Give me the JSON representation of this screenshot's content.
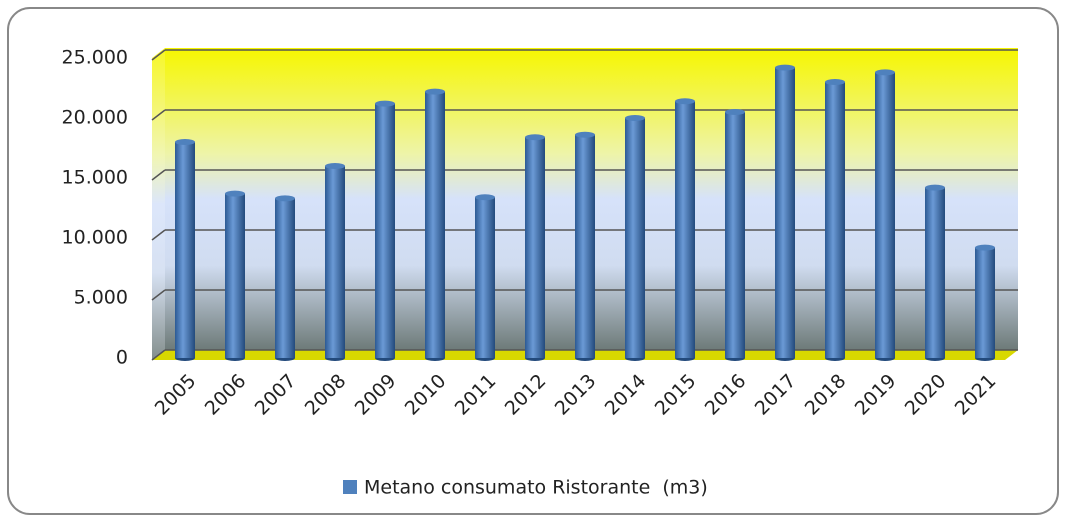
{
  "chart_data": {
    "type": "bar",
    "categories": [
      "2005",
      "2006",
      "2007",
      "2008",
      "2009",
      "2010",
      "2011",
      "2012",
      "2013",
      "2014",
      "2015",
      "2016",
      "2017",
      "2018",
      "2019",
      "2020",
      "2021"
    ],
    "series": [
      {
        "name": "Metano consumato Ristorante  (m3)",
        "color": "#4f81bd",
        "values": [
          18000,
          13700,
          13300,
          16000,
          21200,
          22200,
          13400,
          18400,
          18600,
          20000,
          21400,
          20500,
          24200,
          23000,
          23800,
          14200,
          9200
        ]
      }
    ],
    "ylim": [
      0,
      25000
    ],
    "yticks": [
      0,
      {
        "value": 5000,
        "label": "5.000"
      },
      {
        "value": 10000,
        "label": "10.000"
      },
      {
        "value": 15000,
        "label": "15.000"
      },
      {
        "value": 20000,
        "label": "20.000"
      },
      {
        "value": 25000,
        "label": "25.000"
      }
    ],
    "grid": true,
    "legend": "bottom"
  }
}
